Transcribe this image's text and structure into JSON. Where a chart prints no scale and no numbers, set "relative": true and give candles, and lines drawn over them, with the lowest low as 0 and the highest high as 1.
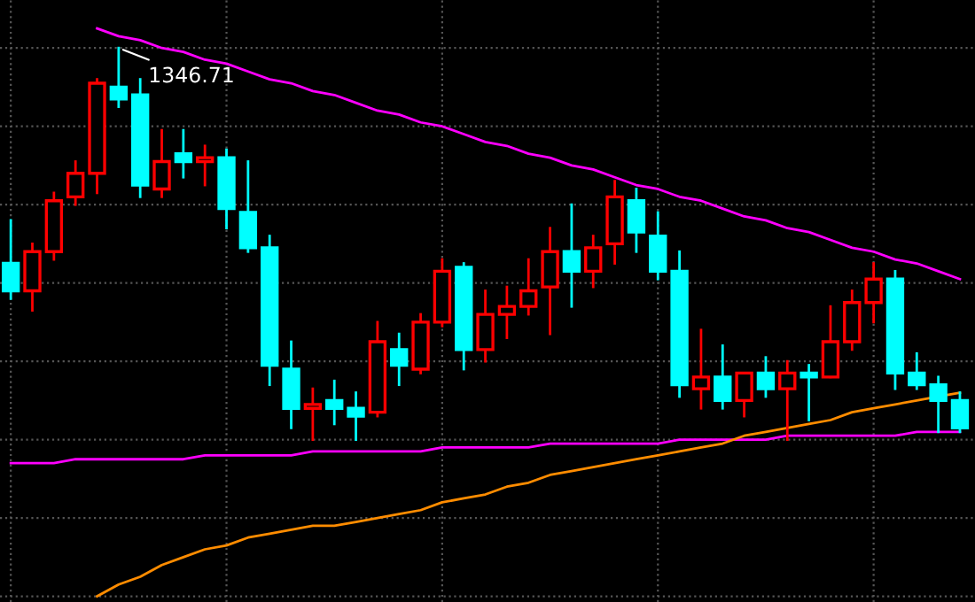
{
  "chart_data": {
    "type": "candlestick",
    "relative": true,
    "grid": true,
    "categories": [
      null,
      null,
      null,
      null,
      null,
      null,
      null,
      null,
      null,
      null,
      null,
      null,
      null,
      null,
      null,
      null,
      null,
      null,
      null,
      null,
      null,
      null,
      null,
      null,
      null,
      null,
      null,
      null,
      null,
      null,
      null,
      null,
      null,
      null,
      null,
      null,
      null,
      null,
      null,
      null,
      null,
      null,
      null,
      null,
      null
    ],
    "ohlc": [
      [
        0.45,
        0.56,
        0.36,
        0.38
      ],
      [
        0.38,
        0.5,
        0.33,
        0.48
      ],
      [
        0.48,
        0.63,
        0.46,
        0.61
      ],
      [
        0.62,
        0.71,
        0.6,
        0.68
      ],
      [
        0.68,
        0.92,
        0.63,
        0.91
      ],
      [
        0.9,
        1,
        0.85,
        0.87
      ],
      [
        0.88,
        0.92,
        0.62,
        0.65
      ],
      [
        0.64,
        0.79,
        0.62,
        0.71
      ],
      [
        0.73,
        0.79,
        0.67,
        0.71
      ],
      [
        0.71,
        0.75,
        0.65,
        0.72
      ],
      [
        0.72,
        0.74,
        0.54,
        0.59
      ],
      [
        0.58,
        0.71,
        0.48,
        0.49
      ],
      [
        0.49,
        0.52,
        0.14,
        0.19
      ],
      [
        0.18,
        0.25,
        0.03,
        0.08
      ],
      [
        0.08,
        0.13,
        0.0,
        0.09
      ],
      [
        0.1,
        0.15,
        0.04,
        0.08
      ],
      [
        0.08,
        0.12,
        0,
        0.06
      ],
      [
        0.07,
        0.3,
        0.06,
        0.25
      ],
      [
        0.23,
        0.27,
        0.14,
        0.19
      ],
      [
        0.18,
        0.32,
        0.17,
        0.3
      ],
      [
        0.3,
        0.46,
        0.29,
        0.43
      ],
      [
        0.44,
        0.45,
        0.18,
        0.23
      ],
      [
        0.23,
        0.38,
        0.2,
        0.32
      ],
      [
        0.32,
        0.39,
        0.26,
        0.34
      ],
      [
        0.34,
        0.46,
        0.32,
        0.38
      ],
      [
        0.39,
        0.54,
        0.27,
        0.48
      ],
      [
        0.48,
        0.6,
        0.34,
        0.43
      ],
      [
        0.43,
        0.52,
        0.39,
        0.49
      ],
      [
        0.5,
        0.66,
        0.45,
        0.62
      ],
      [
        0.61,
        0.64,
        0.48,
        0.53
      ],
      [
        0.52,
        0.58,
        0.41,
        0.43
      ],
      [
        0.43,
        0.48,
        0.11,
        0.14
      ],
      [
        0.13,
        0.28,
        0.08,
        0.16
      ],
      [
        0.16,
        0.24,
        0.08,
        0.1
      ],
      [
        0.1,
        0.17,
        0.06,
        0.17
      ],
      [
        0.17,
        0.21,
        0.11,
        0.13
      ],
      [
        0.13,
        0.2,
        0,
        0.17
      ],
      [
        0.17,
        0.19,
        0.05,
        0.16
      ],
      [
        0.16,
        0.34,
        0.16,
        0.25
      ],
      [
        0.25,
        0.38,
        0.23,
        0.35
      ],
      [
        0.35,
        0.45,
        0.3,
        0.41
      ],
      [
        0.41,
        0.43,
        0.13,
        0.17
      ],
      [
        0.17,
        0.22,
        0.13,
        0.14
      ],
      [
        0.14,
        0.16,
        0.02,
        0.1
      ],
      [
        0.1,
        0.12,
        0.02,
        0.03
      ]
    ],
    "colors": [
      "#00ffff",
      "#ff0000",
      "#ff0000",
      "#ff0000",
      "#ff0000",
      "#00ffff",
      "#00ffff",
      "#ff0000",
      "#00ffff",
      "#ff0000",
      "#00ffff",
      "#00ffff",
      "#00ffff",
      "#00ffff",
      "#ff0000",
      "#00ffff",
      "#00ffff",
      "#ff0000",
      "#00ffff",
      "#ff0000",
      "#ff0000",
      "#00ffff",
      "#ff0000",
      "#ff0000",
      "#ff0000",
      "#ff0000",
      "#00ffff",
      "#ff0000",
      "#ff0000",
      "#00ffff",
      "#00ffff",
      "#00ffff",
      "#ff0000",
      "#00ffff",
      "#ff0000",
      "#00ffff",
      "#ff0000",
      "#00ffff",
      "#ff0000",
      "#ff0000",
      "#ff0000",
      "#00ffff",
      "#00ffff",
      "#00ffff",
      "#00ffff"
    ],
    "series": [
      {
        "type": "line",
        "color": "#ff00ff",
        "values": [
          null,
          null,
          null,
          null,
          1.05,
          1.03,
          1.02,
          1.0,
          0.99,
          0.97,
          0.96,
          0.94,
          0.92,
          0.91,
          0.89,
          0.88,
          0.86,
          0.84,
          0.83,
          0.81,
          0.8,
          0.78,
          0.76,
          0.75,
          0.73,
          0.72,
          0.7,
          0.69,
          0.67,
          0.65,
          0.64,
          0.62,
          0.61,
          0.59,
          0.57,
          0.56,
          0.54,
          0.53,
          0.51,
          0.49,
          0.48,
          0.46,
          0.45,
          0.43,
          0.41
        ]
      },
      {
        "type": "line",
        "color": "#ff00ff",
        "values": [
          -0.06,
          -0.06,
          -0.06,
          -0.05,
          -0.05,
          -0.05,
          -0.05,
          -0.05,
          -0.05,
          -0.04,
          -0.04,
          -0.04,
          -0.04,
          -0.04,
          -0.03,
          -0.03,
          -0.03,
          -0.03,
          -0.03,
          -0.03,
          -0.02,
          -0.02,
          -0.02,
          -0.02,
          -0.02,
          -0.01,
          -0.01,
          -0.01,
          -0.01,
          -0.01,
          -0.01,
          0.0,
          0.0,
          0.0,
          0.0,
          0.0,
          0.01,
          0.01,
          0.01,
          0.01,
          0.01,
          0.01,
          0.02,
          0.02,
          0.02
        ]
      },
      {
        "type": "line",
        "color": "#ff8c00",
        "values": [
          null,
          null,
          null,
          null,
          -0.4,
          -0.37,
          -0.35,
          -0.32,
          -0.3,
          -0.28,
          -0.27,
          -0.25,
          -0.24,
          -0.23,
          -0.22,
          -0.22,
          -0.21,
          -0.2,
          -0.19,
          -0.18,
          -0.16,
          -0.15,
          -0.14,
          -0.12,
          -0.11,
          -0.09,
          -0.08,
          -0.07,
          -0.06,
          -0.05,
          -0.04,
          -0.03,
          -0.02,
          -0.01,
          0.01,
          0.02,
          0.03,
          0.04,
          0.05,
          0.07,
          0.08,
          0.09,
          0.1,
          0.11,
          0.12
        ]
      }
    ],
    "annotations": [
      {
        "text": "1346.71",
        "y": 1
      }
    ]
  }
}
